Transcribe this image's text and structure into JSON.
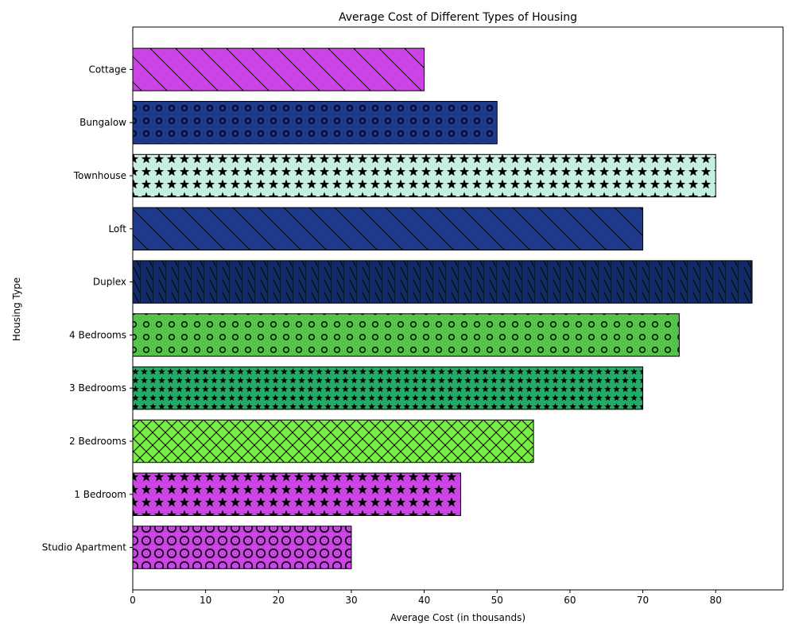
{
  "chart_data": {
    "type": "bar",
    "orientation": "horizontal",
    "title": "Average Cost of Different Types of Housing",
    "xlabel": "Average Cost (in thousands)",
    "ylabel": "Housing Type",
    "xlim": [
      0,
      89.25
    ],
    "xticks": [
      0,
      10,
      20,
      30,
      40,
      50,
      60,
      70,
      80
    ],
    "grid": false,
    "categories": [
      "Studio Apartment",
      "1 Bedroom",
      "2 Bedrooms",
      "3 Bedrooms",
      "4 Bedrooms",
      "Duplex",
      "Loft",
      "Townhouse",
      "Bungalow",
      "Cottage"
    ],
    "values": [
      30,
      45,
      55,
      70,
      75,
      85,
      70,
      80,
      50,
      40
    ],
    "colors": [
      "#cc44e6",
      "#cc44e6",
      "#77ee44",
      "#22aa66",
      "#55c24a",
      "#122a66",
      "#1f3a8c",
      "#c4f0e2",
      "#1f3a8c",
      "#cc44e6"
    ],
    "hatches": [
      "circles-large",
      "stars",
      "cross-diagonal",
      "stars-small",
      "dots-small",
      "vertical-diagonal",
      "diagonal-back",
      "stars",
      "dots-small",
      "diagonal-back"
    ]
  }
}
